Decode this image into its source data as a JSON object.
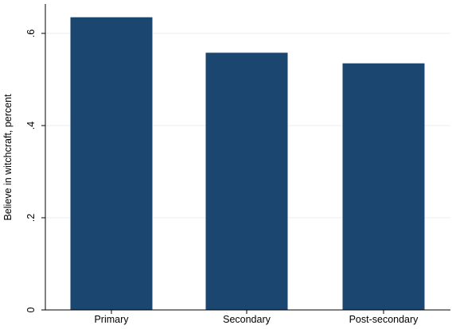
{
  "chart_data": {
    "type": "bar",
    "categories": [
      "Primary",
      "Secondary",
      "Post-secondary"
    ],
    "values": [
      0.635,
      0.558,
      0.535
    ],
    "ylabel": "Believe in witchcraft, percent",
    "xlabel": "",
    "ylim": [
      0,
      0.65
    ],
    "yticks": [
      0,
      0.2,
      0.4,
      0.6
    ],
    "ytick_labels": [
      "0",
      ".2",
      ".4",
      ".6"
    ],
    "grid": true,
    "bar_color": "#1a4670",
    "grid_color": "#e8ecf0"
  }
}
